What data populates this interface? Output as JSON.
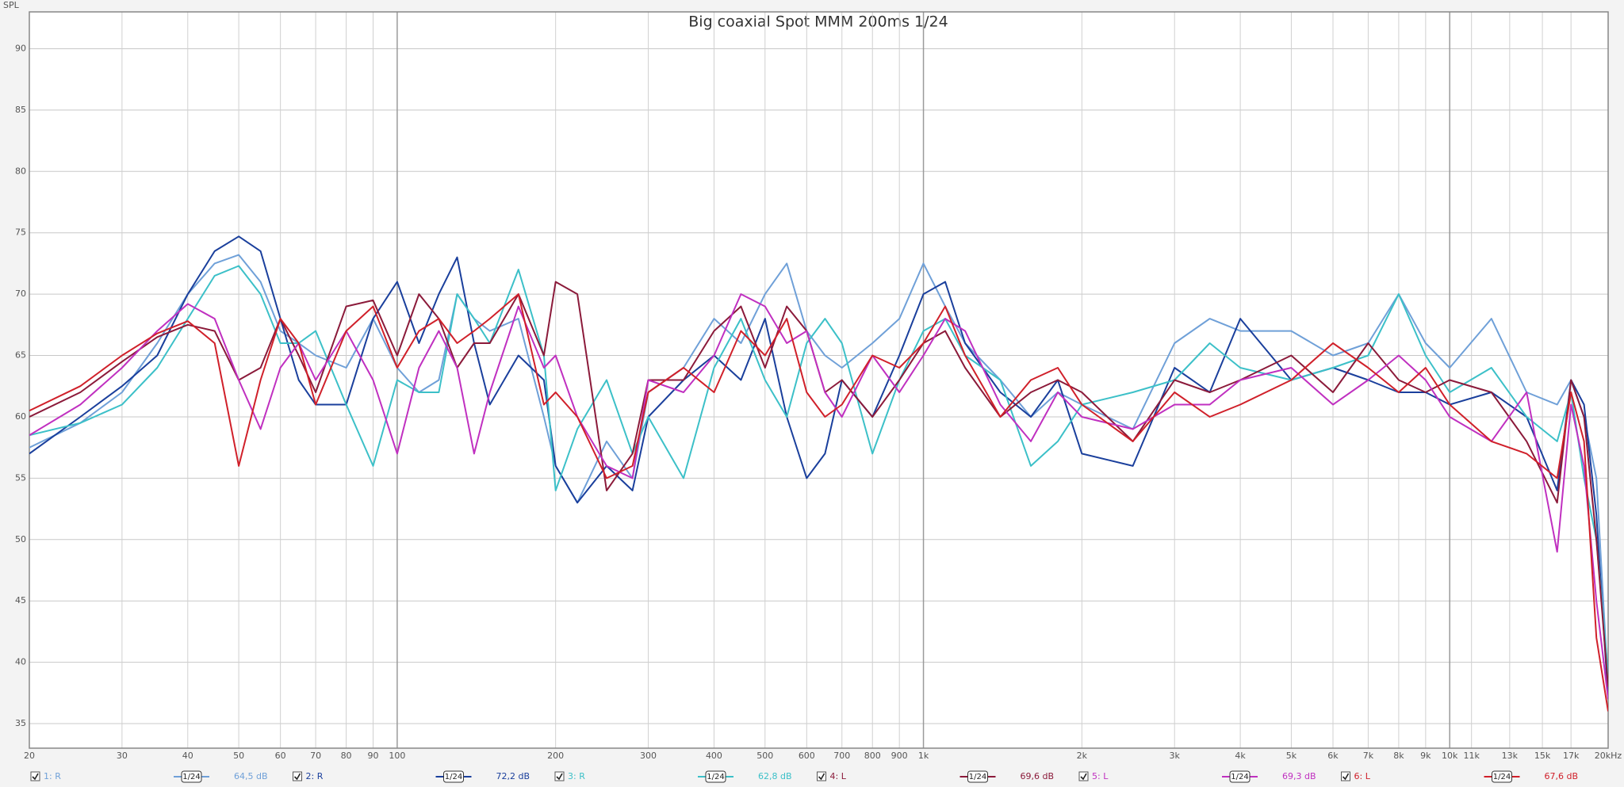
{
  "chart_data": {
    "type": "line",
    "title": "Big coaxial Spot MMM 200ms 1/24",
    "y_label": "SPL",
    "log_x": true,
    "grid": true,
    "xlim": [
      20,
      20000
    ],
    "ylim": [
      33,
      93
    ],
    "yticks": [
      35,
      40,
      45,
      50,
      55,
      60,
      65,
      70,
      75,
      80,
      85,
      90
    ],
    "xticks": [
      20,
      30,
      40,
      50,
      60,
      70,
      80,
      90,
      100,
      200,
      300,
      400,
      500,
      600,
      700,
      800,
      900,
      {
        "value": 1000,
        "label": "1k"
      },
      {
        "value": 2000,
        "label": "2k"
      },
      {
        "value": 3000,
        "label": "3k"
      },
      {
        "value": 4000,
        "label": "4k"
      },
      {
        "value": 5000,
        "label": "5k"
      },
      {
        "value": 6000,
        "label": "6k"
      },
      {
        "value": 7000,
        "label": "7k"
      },
      {
        "value": 8000,
        "label": "8k"
      },
      {
        "value": 9000,
        "label": "9k"
      },
      {
        "value": 10000,
        "label": "10k"
      },
      {
        "value": 11000,
        "label": "11k"
      },
      {
        "value": 13000,
        "label": "13k"
      },
      {
        "value": 15000,
        "label": "15k"
      },
      {
        "value": 17000,
        "label": "17k"
      },
      {
        "value": 20000,
        "label": "20kHz"
      }
    ],
    "x": [
      20,
      25,
      30,
      35,
      40,
      45,
      50,
      55,
      60,
      65,
      70,
      80,
      90,
      100,
      110,
      120,
      130,
      140,
      150,
      170,
      190,
      200,
      220,
      250,
      280,
      300,
      350,
      400,
      450,
      500,
      550,
      600,
      650,
      700,
      800,
      900,
      1000,
      1100,
      1200,
      1400,
      1600,
      1800,
      2000,
      2500,
      3000,
      3500,
      4000,
      5000,
      6000,
      7000,
      8000,
      9000,
      10000,
      12000,
      14000,
      16000,
      17000,
      18000,
      19000,
      20000
    ],
    "series": [
      {
        "name": "1: R",
        "color": "#6fa0d8",
        "smoothing": "1/24",
        "level": "64,5 dB",
        "values": [
          57.5,
          59.5,
          62,
          66,
          70,
          72.5,
          73.2,
          71,
          67,
          66,
          65,
          64,
          68,
          64,
          62,
          63,
          70,
          68,
          67,
          68,
          60,
          56,
          53,
          58,
          55,
          62,
          64,
          68,
          66,
          70,
          72.5,
          67,
          65,
          64,
          66,
          68,
          72.5,
          69,
          66,
          63,
          60,
          62,
          61,
          59,
          66,
          68,
          67,
          67,
          65,
          66,
          70,
          66,
          64,
          68,
          62,
          61,
          63,
          60,
          55,
          38
        ]
      },
      {
        "name": "2: R",
        "color": "#1a3f9c",
        "smoothing": "1/24",
        "level": "72,2 dB",
        "values": [
          57,
          60,
          62.5,
          65,
          70,
          73.5,
          74.7,
          73.5,
          68,
          63,
          61,
          61,
          68,
          71,
          66,
          70,
          73,
          66,
          61,
          65,
          63,
          56,
          53,
          56,
          54,
          60,
          63,
          65,
          63,
          68,
          60,
          55,
          57,
          63,
          60,
          65,
          70,
          71,
          66,
          62,
          60,
          63,
          57,
          56,
          64,
          62,
          68,
          63,
          64,
          63,
          62,
          62,
          61,
          62,
          60,
          54,
          63,
          61,
          52,
          37
        ]
      },
      {
        "name": "3: R",
        "color": "#3cc0c8",
        "smoothing": "1/24",
        "level": "62,8 dB",
        "values": [
          58.5,
          59.5,
          61,
          64,
          68,
          71.5,
          72.3,
          70,
          66,
          66,
          67,
          61,
          56,
          63,
          62,
          62,
          70,
          68,
          66,
          72,
          65,
          54,
          59,
          63,
          57,
          60,
          55,
          64,
          68,
          63,
          60,
          66,
          68,
          66,
          57,
          63,
          67,
          68,
          65,
          63,
          56,
          58,
          61,
          62,
          63,
          66,
          64,
          63,
          64,
          65,
          70,
          65,
          62,
          64,
          60,
          58,
          62,
          55,
          50,
          39
        ]
      },
      {
        "name": "4: L",
        "color": "#8b1a3a",
        "smoothing": "1/24",
        "level": "69,6 dB",
        "values": [
          60,
          62,
          64.5,
          66.5,
          67.5,
          67,
          63,
          64,
          68,
          65,
          62,
          69,
          69.5,
          65,
          70,
          68,
          64,
          66,
          66,
          70,
          65,
          71,
          70,
          54,
          57,
          63,
          63,
          67,
          69,
          64,
          69,
          67,
          62,
          63,
          60,
          63,
          66,
          67,
          64,
          60,
          62,
          63,
          62,
          58,
          63,
          62,
          63,
          65,
          62,
          66,
          63,
          62,
          63,
          62,
          58,
          53,
          63,
          60,
          50,
          38
        ]
      },
      {
        "name": "5: L",
        "color": "#c030c0",
        "smoothing": "1/24",
        "level": "69,3 dB",
        "values": [
          58.5,
          61,
          64,
          67,
          69.2,
          68,
          63,
          59,
          64,
          66,
          63,
          67,
          63,
          57,
          64,
          67,
          64,
          57,
          62,
          69,
          64,
          65,
          60,
          56,
          55,
          63,
          62,
          65,
          70,
          69,
          66,
          67,
          62,
          60,
          65,
          62,
          65,
          68,
          67,
          61,
          58,
          62,
          60,
          59,
          61,
          61,
          63,
          64,
          61,
          63,
          65,
          63,
          60,
          58,
          62,
          49,
          61,
          56,
          45,
          37
        ]
      },
      {
        "name": "6: L",
        "color": "#d0202a",
        "smoothing": "1/24",
        "level": "67,6 dB",
        "values": [
          60.5,
          62.5,
          65,
          66.8,
          67.8,
          66,
          56,
          63,
          68,
          66,
          61,
          67,
          69,
          64,
          67,
          68,
          66,
          67,
          68,
          70,
          61,
          62,
          60,
          55,
          56,
          62,
          64,
          62,
          67,
          65,
          68,
          62,
          60,
          61,
          65,
          64,
          66,
          69,
          65,
          60,
          63,
          64,
          61,
          58,
          62,
          60,
          61,
          63,
          66,
          64,
          62,
          64,
          61,
          58,
          57,
          55,
          62,
          58,
          42,
          36
        ]
      }
    ]
  }
}
